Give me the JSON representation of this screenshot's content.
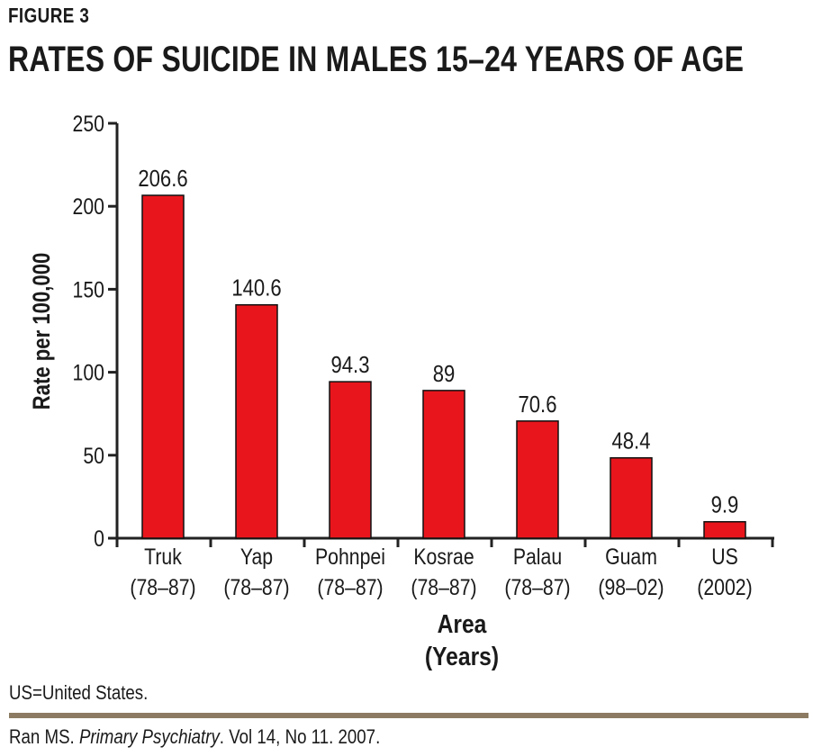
{
  "figure_label": "FIGURE 3",
  "chart_data": {
    "type": "bar",
    "title": "RATES OF SUICIDE IN MALES 15–24 YEARS OF AGE",
    "ylabel": "Rate per 100,000",
    "xlabel": [
      "Area",
      "(Years)"
    ],
    "ylim": [
      0,
      250
    ],
    "yticks": [
      0,
      50,
      100,
      150,
      200,
      250
    ],
    "categories": [
      [
        "Truk",
        "(78–87)"
      ],
      [
        "Yap",
        "(78–87)"
      ],
      [
        "Pohnpei",
        "(78–87)"
      ],
      [
        "Kosrae",
        "(78–87)"
      ],
      [
        "Palau",
        "(78–87)"
      ],
      [
        "Guam",
        "(98–02)"
      ],
      [
        "US",
        "(2002)"
      ]
    ],
    "values": [
      206.6,
      140.6,
      94.3,
      89,
      70.6,
      48.4,
      9.9
    ],
    "data_labels": [
      "206.6",
      "140.6",
      "94.3",
      "89",
      "70.6",
      "48.4",
      "9.9"
    ],
    "bar_color": "#e8161c",
    "grid": false,
    "legend": "none"
  },
  "footnote": "US=United States.",
  "citation": {
    "before": "Ran MS. ",
    "journal": "Primary Psychiatry",
    "after": ". Vol 14, No 11. 2007."
  },
  "colors": {
    "rule": "#8c7b62",
    "text": "#1a1a1a"
  }
}
